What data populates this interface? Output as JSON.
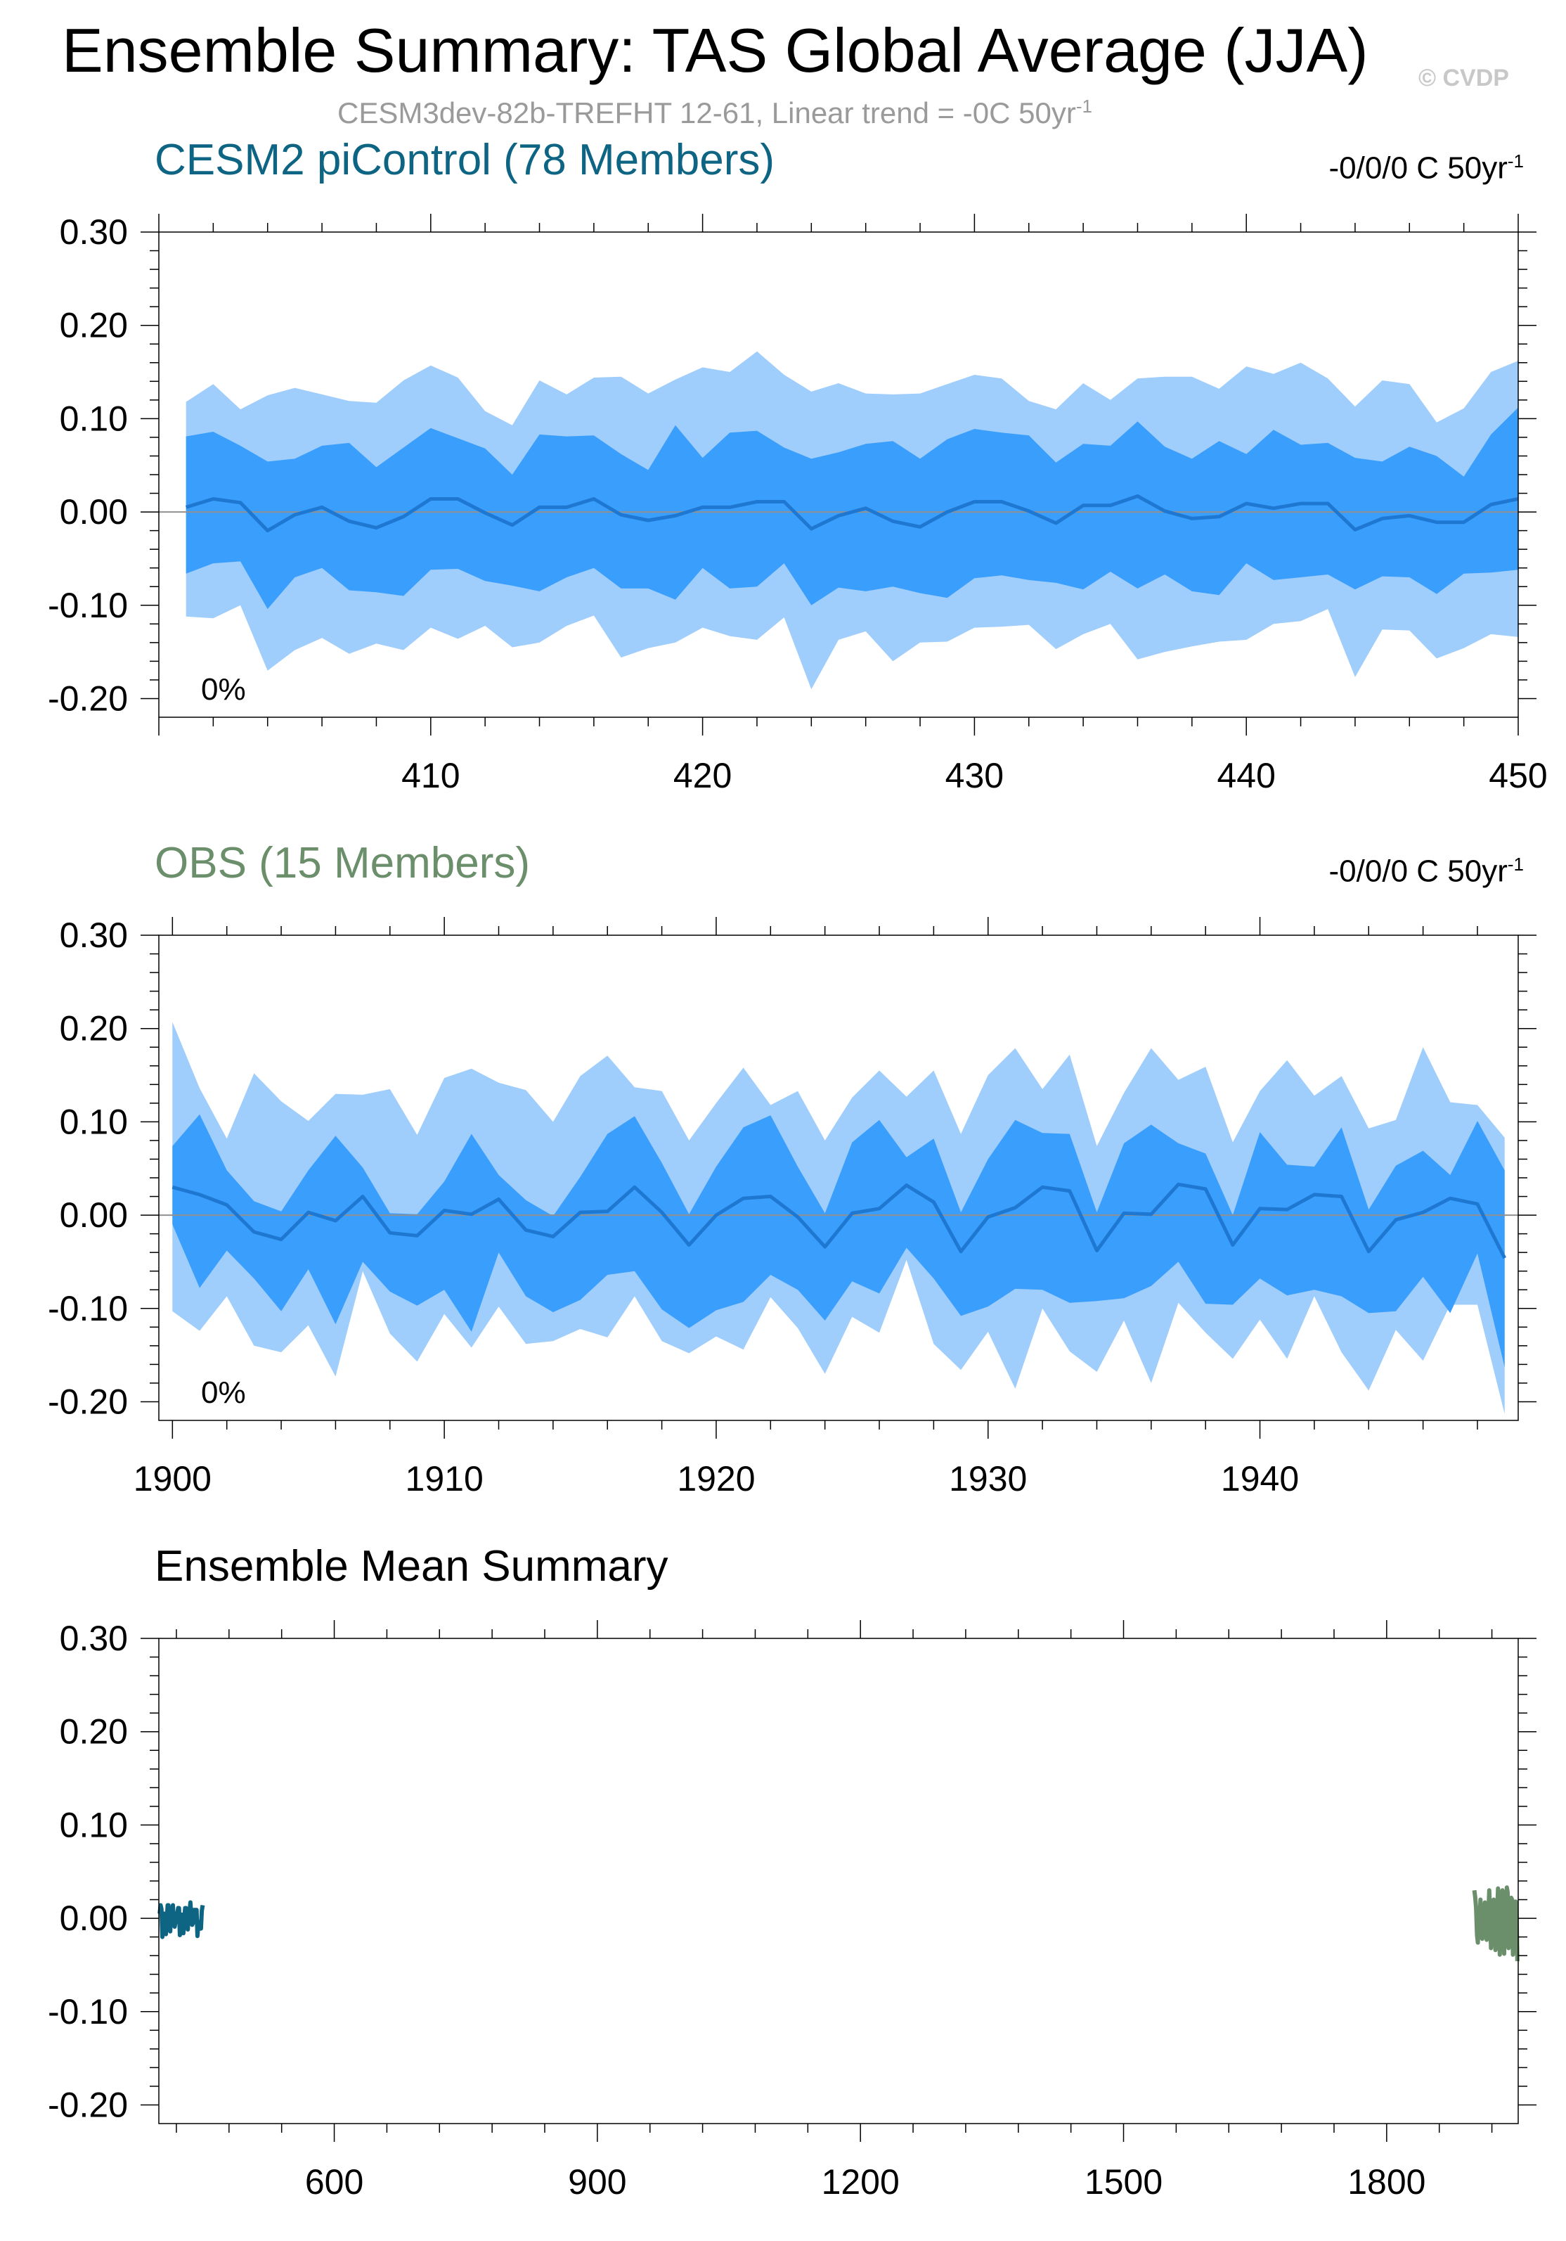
{
  "title": "Ensemble Summary: TAS Global Average (JJA)",
  "copyright": "© CVDP",
  "subtitle": {
    "text": "CESM3dev-82b-TREFHT 12-61, Linear trend = -0C 50yr",
    "sup": "-1"
  },
  "colors": {
    "model": "#0e6483",
    "obs": "#6b8e6b",
    "outer_band": "#9fcdfc",
    "inner_band": "#3a9efc",
    "ens_mean_line": "#1e78d2",
    "axis": "#000000",
    "zero_line": "#909090",
    "subtitle": "#9a9a9a",
    "copyright": "#c8c8c8"
  },
  "chart_data": [
    {
      "type": "area",
      "title": "CESM2 piControl (78 Members)",
      "trend_label": {
        "text": "-0/0/0 C 50yr",
        "sup": "-1"
      },
      "percent_label": "0%",
      "x_ticks": [
        410,
        420,
        430,
        440,
        450
      ],
      "xlim": [
        400,
        450
      ],
      "y_ticks": [
        "0.30",
        "0.20",
        "0.10",
        "0.00",
        "-0.10",
        "-0.20"
      ],
      "ylim": [
        -0.22,
        0.3
      ],
      "x": [
        401,
        402,
        403,
        404,
        405,
        406,
        407,
        408,
        409,
        410,
        411,
        412,
        413,
        414,
        415,
        416,
        417,
        418,
        419,
        420,
        421,
        422,
        423,
        424,
        425,
        426,
        427,
        428,
        429,
        430,
        431,
        432,
        433,
        434,
        435,
        436,
        437,
        438,
        439,
        440,
        441,
        442,
        443,
        444,
        445,
        446,
        447,
        448,
        449,
        450
      ],
      "series": [
        {
          "name": "max",
          "values": [
            0.118,
            0.137,
            0.11,
            0.125,
            0.133,
            0.126,
            0.119,
            0.117,
            0.141,
            0.157,
            0.144,
            0.108,
            0.093,
            0.141,
            0.126,
            0.144,
            0.145,
            0.127,
            0.142,
            0.155,
            0.15,
            0.172,
            0.147,
            0.129,
            0.138,
            0.127,
            0.126,
            0.127,
            0.137,
            0.147,
            0.143,
            0.119,
            0.11,
            0.138,
            0.12,
            0.143,
            0.145,
            0.145,
            0.132,
            0.156,
            0.148,
            0.16,
            0.143,
            0.113,
            0.141,
            0.137,
            0.096,
            0.111,
            0.15,
            0.162
          ]
        },
        {
          "name": "p90",
          "values": [
            0.081,
            0.086,
            0.071,
            0.054,
            0.057,
            0.071,
            0.074,
            0.048,
            0.069,
            0.09,
            0.079,
            0.068,
            0.04,
            0.083,
            0.081,
            0.082,
            0.062,
            0.045,
            0.093,
            0.058,
            0.085,
            0.087,
            0.069,
            0.057,
            0.064,
            0.073,
            0.076,
            0.057,
            0.078,
            0.089,
            0.085,
            0.082,
            0.053,
            0.073,
            0.071,
            0.097,
            0.07,
            0.057,
            0.076,
            0.062,
            0.088,
            0.072,
            0.074,
            0.058,
            0.054,
            0.07,
            0.06,
            0.038,
            0.083,
            0.112
          ]
        },
        {
          "name": "mean",
          "values": [
            0.005,
            0.014,
            0.01,
            -0.02,
            -0.003,
            0.005,
            -0.01,
            -0.017,
            -0.005,
            0.014,
            0.014,
            -0.001,
            -0.014,
            0.005,
            0.005,
            0.014,
            -0.003,
            -0.009,
            -0.004,
            0.005,
            0.005,
            0.011,
            0.011,
            -0.018,
            -0.004,
            0.004,
            -0.01,
            -0.016,
            0.0,
            0.011,
            0.011,
            0.001,
            -0.012,
            0.007,
            0.007,
            0.017,
            0.001,
            -0.007,
            -0.005,
            0.009,
            0.004,
            0.009,
            0.009,
            -0.019,
            -0.007,
            -0.004,
            -0.011,
            -0.011,
            0.008,
            0.014
          ]
        },
        {
          "name": "p10",
          "values": [
            -0.066,
            -0.055,
            -0.053,
            -0.104,
            -0.07,
            -0.06,
            -0.084,
            -0.086,
            -0.09,
            -0.062,
            -0.061,
            -0.074,
            -0.079,
            -0.085,
            -0.07,
            -0.06,
            -0.082,
            -0.082,
            -0.094,
            -0.06,
            -0.082,
            -0.08,
            -0.055,
            -0.1,
            -0.081,
            -0.085,
            -0.08,
            -0.087,
            -0.092,
            -0.071,
            -0.068,
            -0.073,
            -0.076,
            -0.083,
            -0.064,
            -0.082,
            -0.067,
            -0.085,
            -0.089,
            -0.055,
            -0.073,
            -0.07,
            -0.067,
            -0.083,
            -0.069,
            -0.07,
            -0.088,
            -0.066,
            -0.065,
            -0.062
          ]
        },
        {
          "name": "min",
          "values": [
            -0.112,
            -0.114,
            -0.1,
            -0.17,
            -0.148,
            -0.135,
            -0.152,
            -0.141,
            -0.148,
            -0.124,
            -0.136,
            -0.122,
            -0.145,
            -0.14,
            -0.122,
            -0.111,
            -0.156,
            -0.146,
            -0.14,
            -0.124,
            -0.133,
            -0.137,
            -0.113,
            -0.19,
            -0.137,
            -0.128,
            -0.16,
            -0.14,
            -0.139,
            -0.124,
            -0.123,
            -0.121,
            -0.147,
            -0.131,
            -0.12,
            -0.158,
            -0.15,
            -0.144,
            -0.139,
            -0.137,
            -0.12,
            -0.117,
            -0.104,
            -0.177,
            -0.126,
            -0.127,
            -0.157,
            -0.146,
            -0.131,
            -0.134
          ]
        }
      ]
    },
    {
      "type": "area",
      "title": "OBS (15 Members)",
      "trend_label": {
        "text": "-0/0/0 C 50yr",
        "sup": "-1"
      },
      "percent_label": "0%",
      "x_ticks": [
        1900,
        1910,
        1920,
        1930,
        1940
      ],
      "xlim": [
        1899.5,
        1949.5
      ],
      "y_ticks": [
        "0.30",
        "0.20",
        "0.10",
        "0.00",
        "-0.10",
        "-0.20"
      ],
      "ylim": [
        -0.22,
        0.3
      ],
      "x": [
        1900,
        1901,
        1902,
        1903,
        1904,
        1905,
        1906,
        1907,
        1908,
        1909,
        1910,
        1911,
        1912,
        1913,
        1914,
        1915,
        1916,
        1917,
        1918,
        1919,
        1920,
        1921,
        1922,
        1923,
        1924,
        1925,
        1926,
        1927,
        1928,
        1929,
        1930,
        1931,
        1932,
        1933,
        1934,
        1935,
        1936,
        1937,
        1938,
        1939,
        1940,
        1941,
        1942,
        1943,
        1944,
        1945,
        1946,
        1947,
        1948,
        1949
      ],
      "series": [
        {
          "name": "max",
          "values": [
            0.207,
            0.136,
            0.082,
            0.152,
            0.122,
            0.101,
            0.13,
            0.129,
            0.135,
            0.086,
            0.147,
            0.157,
            0.142,
            0.134,
            0.1,
            0.149,
            0.171,
            0.137,
            0.133,
            0.08,
            0.12,
            0.158,
            0.118,
            0.133,
            0.08,
            0.126,
            0.155,
            0.127,
            0.155,
            0.087,
            0.15,
            0.179,
            0.135,
            0.172,
            0.074,
            0.131,
            0.179,
            0.145,
            0.159,
            0.078,
            0.133,
            0.166,
            0.128,
            0.149,
            0.093,
            0.102,
            0.18,
            0.121,
            0.118,
            0.083
          ]
        },
        {
          "name": "p90",
          "values": [
            0.074,
            0.108,
            0.048,
            0.015,
            0.004,
            0.048,
            0.085,
            0.051,
            0.002,
            0.001,
            0.036,
            0.087,
            0.043,
            0.016,
            -0.001,
            0.041,
            0.087,
            0.106,
            0.056,
            0.001,
            0.052,
            0.094,
            0.107,
            0.052,
            0.002,
            0.078,
            0.102,
            0.062,
            0.082,
            0.003,
            0.06,
            0.102,
            0.088,
            0.087,
            0.003,
            0.077,
            0.097,
            0.077,
            0.066,
            0.0,
            0.089,
            0.054,
            0.052,
            0.094,
            0.006,
            0.053,
            0.069,
            0.043,
            0.101,
            0.048
          ]
        },
        {
          "name": "mean",
          "values": [
            0.03,
            0.022,
            0.011,
            -0.018,
            -0.026,
            0.003,
            -0.006,
            0.02,
            -0.019,
            -0.022,
            0.005,
            0.001,
            0.017,
            -0.016,
            -0.023,
            0.003,
            0.004,
            0.03,
            0.003,
            -0.032,
            0.0,
            0.018,
            0.02,
            -0.002,
            -0.034,
            0.002,
            0.007,
            0.032,
            0.014,
            -0.039,
            -0.002,
            0.008,
            0.03,
            0.026,
            -0.038,
            0.002,
            0.001,
            0.033,
            0.028,
            -0.032,
            0.007,
            0.006,
            0.022,
            0.02,
            -0.039,
            -0.005,
            0.003,
            0.018,
            0.012,
            -0.046
          ]
        },
        {
          "name": "p10",
          "values": [
            -0.01,
            -0.078,
            -0.038,
            -0.068,
            -0.103,
            -0.058,
            -0.117,
            -0.05,
            -0.082,
            -0.097,
            -0.08,
            -0.125,
            -0.04,
            -0.087,
            -0.104,
            -0.091,
            -0.064,
            -0.06,
            -0.101,
            -0.121,
            -0.102,
            -0.093,
            -0.064,
            -0.08,
            -0.113,
            -0.071,
            -0.084,
            -0.035,
            -0.068,
            -0.108,
            -0.098,
            -0.079,
            -0.08,
            -0.094,
            -0.092,
            -0.089,
            -0.076,
            -0.05,
            -0.095,
            -0.096,
            -0.068,
            -0.086,
            -0.08,
            -0.087,
            -0.105,
            -0.103,
            -0.066,
            -0.105,
            -0.041,
            -0.163
          ]
        },
        {
          "name": "min",
          "values": [
            -0.103,
            -0.124,
            -0.087,
            -0.14,
            -0.147,
            -0.118,
            -0.173,
            -0.06,
            -0.127,
            -0.157,
            -0.106,
            -0.142,
            -0.098,
            -0.138,
            -0.135,
            -0.122,
            -0.131,
            -0.087,
            -0.135,
            -0.148,
            -0.13,
            -0.144,
            -0.088,
            -0.121,
            -0.17,
            -0.109,
            -0.126,
            -0.048,
            -0.138,
            -0.166,
            -0.125,
            -0.186,
            -0.1,
            -0.146,
            -0.168,
            -0.113,
            -0.18,
            -0.094,
            -0.126,
            -0.154,
            -0.112,
            -0.154,
            -0.087,
            -0.147,
            -0.188,
            -0.123,
            -0.156,
            -0.096,
            -0.096,
            -0.213
          ]
        }
      ]
    },
    {
      "type": "line",
      "title": "Ensemble Mean Summary",
      "x_ticks": [
        600,
        900,
        1200,
        1500,
        1800
      ],
      "xlim": [
        400,
        1950
      ],
      "y_ticks": [
        "0.30",
        "0.20",
        "0.10",
        "0.00",
        "-0.10",
        "-0.20"
      ],
      "ylim": [
        -0.22,
        0.3
      ],
      "series_refs": [
        {
          "ref": 0,
          "color_key": "model"
        },
        {
          "ref": 1,
          "color_key": "obs"
        }
      ]
    }
  ]
}
